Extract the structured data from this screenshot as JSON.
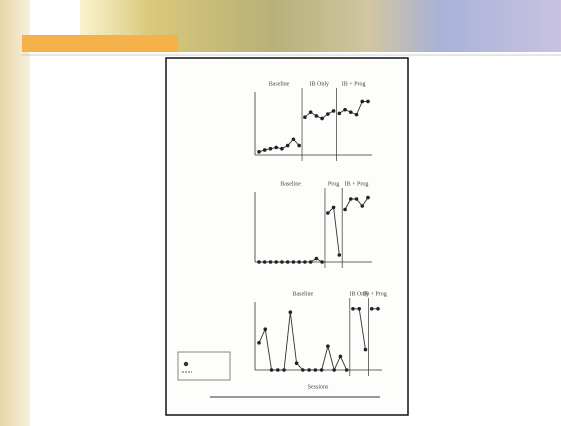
{
  "figure": {
    "x_label": "Sessions",
    "panels": [
      {
        "phases": [
          "Baseline",
          "IB Only",
          "IB + Prog"
        ],
        "phase_starts": [
          8,
          14
        ],
        "values": [
          5,
          8,
          10,
          12,
          10,
          15,
          25,
          15,
          60,
          68,
          62,
          58,
          65,
          70,
          66,
          72,
          68,
          64,
          85,
          85
        ]
      },
      {
        "phases": [
          "Baseline",
          "Prog",
          "IB + Prog"
        ],
        "phase_starts": [
          12,
          15
        ],
        "values": [
          0,
          0,
          0,
          0,
          0,
          0,
          0,
          0,
          0,
          0,
          5,
          0,
          70,
          78,
          10,
          75,
          90,
          90,
          80,
          92
        ]
      },
      {
        "phases": [
          "Baseline",
          "IB Only",
          "IB + Prog"
        ],
        "phase_starts": [
          15,
          18
        ],
        "values": [
          40,
          60,
          0,
          0,
          0,
          85,
          10,
          0,
          0,
          0,
          0,
          35,
          0,
          20,
          0,
          90,
          90,
          30,
          90,
          90
        ]
      }
    ]
  }
}
